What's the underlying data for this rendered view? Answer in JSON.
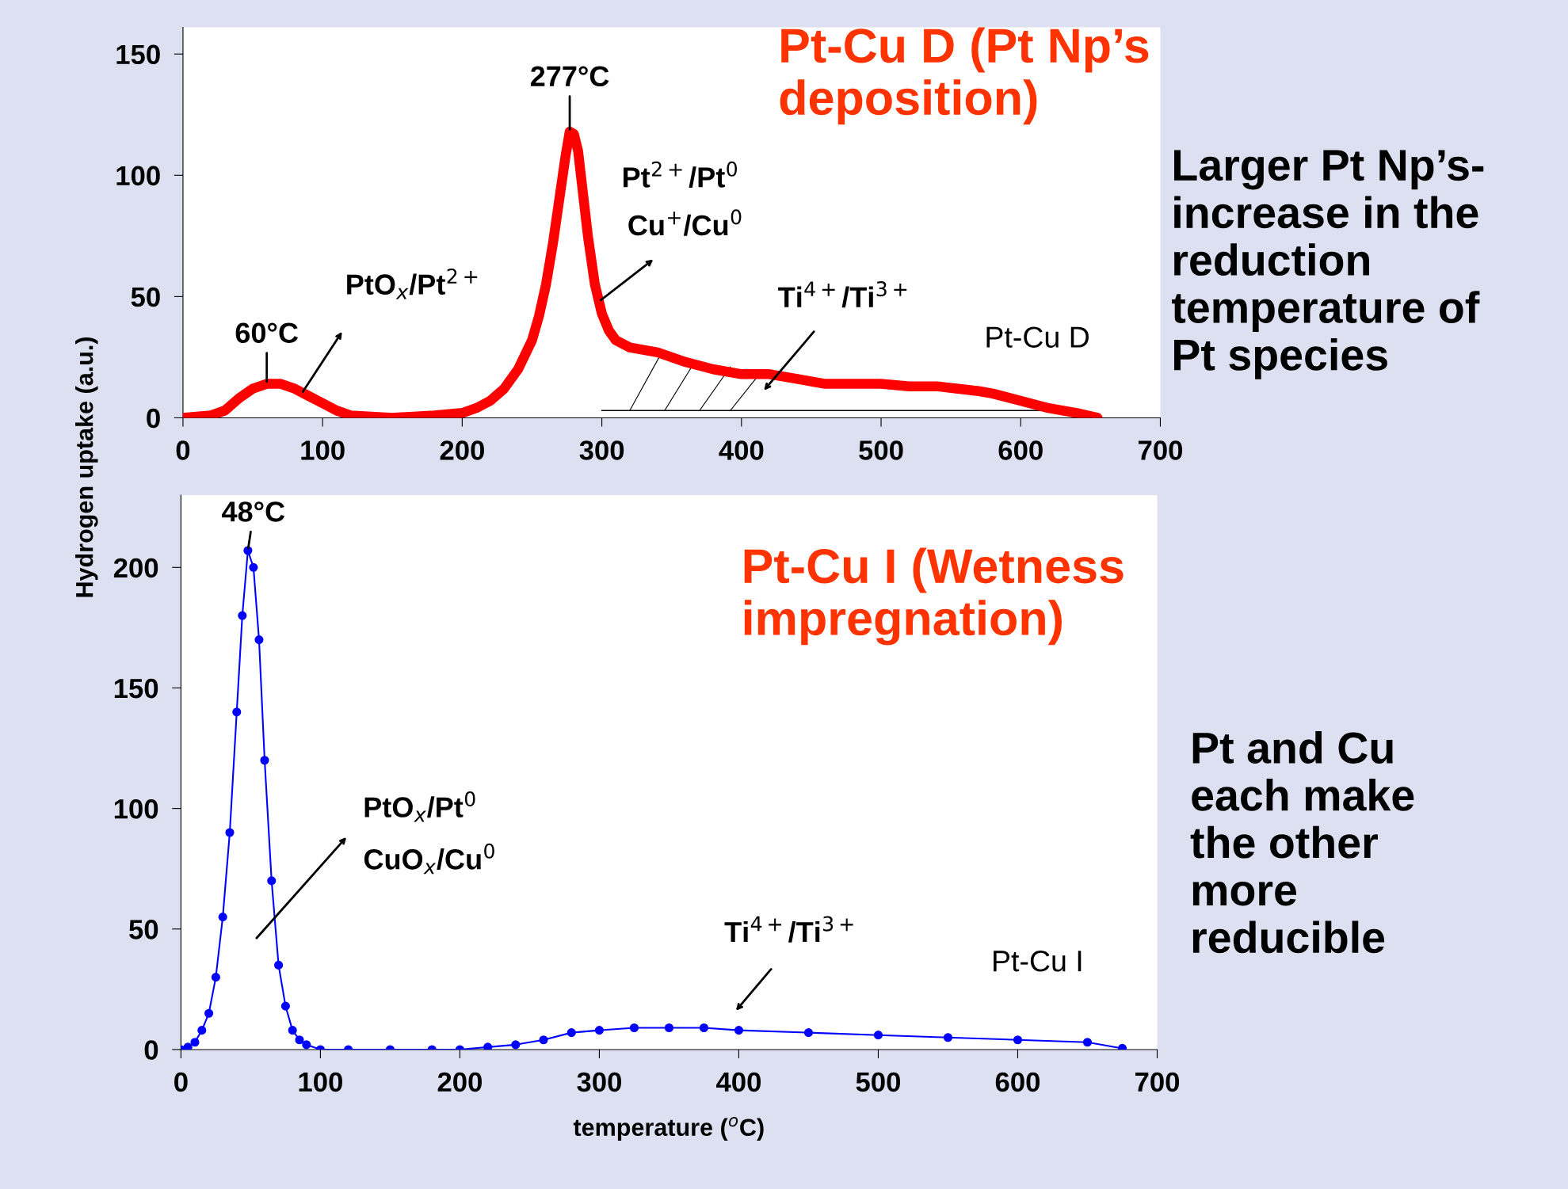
{
  "chart_data": [
    {
      "type": "line",
      "title": "Pt-Cu D (Pt Np’s\ndeposition)",
      "xlim": [
        0,
        700
      ],
      "xticks": [
        0,
        100,
        200,
        300,
        400,
        500,
        600,
        700
      ],
      "ylim": [
        0,
        161
      ],
      "yticks": [
        0,
        50,
        100,
        150
      ],
      "grid": false,
      "marker": "none",
      "line_style": "solid",
      "series": [
        {
          "name": "Pt-Cu D",
          "color": "#ff0000",
          "x": [
            0,
            20,
            30,
            40,
            50,
            60,
            70,
            80,
            90,
            100,
            110,
            120,
            150,
            180,
            200,
            210,
            220,
            230,
            240,
            250,
            255,
            260,
            265,
            270,
            274,
            277,
            280,
            283,
            286,
            290,
            295,
            300,
            305,
            310,
            320,
            340,
            360,
            380,
            400,
            420,
            440,
            460,
            480,
            500,
            520,
            540,
            555,
            570,
            580,
            600,
            620,
            640,
            655
          ],
          "values": [
            0,
            1,
            3,
            8,
            12,
            14,
            14,
            12,
            9,
            6,
            3,
            1,
            0,
            1,
            2,
            4,
            7,
            12,
            20,
            32,
            42,
            55,
            72,
            92,
            108,
            118,
            117,
            110,
            95,
            75,
            55,
            43,
            36,
            32,
            29,
            27,
            23,
            20,
            18,
            18,
            16,
            14,
            14,
            14,
            13,
            13,
            12,
            11,
            10,
            7,
            4,
            2,
            0
          ]
        },
        {
          "type": "line",
          "color": "#000000",
          "x": [
            300,
            615
          ],
          "values": [
            3,
            3
          ]
        }
      ],
      "annotations": [
        {
          "text": "60°C",
          "x": 60,
          "y": 14
        },
        {
          "text": "277°C",
          "x": 277,
          "y": 118
        },
        {
          "text": "PtO$_{x}$/Pt$^{2+}$",
          "x": 85,
          "y": 10
        },
        "Pt$^{2+}$/Pt$^{0}$",
        {
          "text": "Cu$^{+}$/Cu$^{0}$",
          "x": 298,
          "y": 48
        },
        "Ti$^{4+}$/Ti$^{3+}$",
        "Larger Pt Np’s-\nincrease in the\nreduction\ntemperature of\nPt species"
      ]
    },
    {
      "type": "line",
      "title": "Pt-Cu I (Wetness\nimpregnation)",
      "xlabel": "temperature ($^{o}$C)",
      "ylabel": "Hydrogen uptake (a.u.)",
      "xlim": [
        0,
        700
      ],
      "xticks": [
        0,
        100,
        200,
        300,
        400,
        500,
        600,
        700
      ],
      "ylim": [
        0,
        230
      ],
      "yticks": [
        0,
        50,
        100,
        150,
        200
      ],
      "grid": false,
      "marker": "circle",
      "line_style": "solid",
      "series": [
        {
          "name": "Pt-Cu I",
          "color": "#0000ff",
          "x": [
            0,
            5,
            10,
            15,
            20,
            25,
            30,
            35,
            40,
            44,
            48,
            52,
            56,
            60,
            65,
            70,
            75,
            80,
            85,
            90,
            100,
            120,
            150,
            180,
            200,
            220,
            240,
            260,
            280,
            300,
            325,
            350,
            375,
            400,
            450,
            500,
            550,
            600,
            650,
            675
          ],
          "values": [
            0,
            1,
            3,
            8,
            15,
            30,
            55,
            90,
            140,
            180,
            207,
            200,
            170,
            120,
            70,
            35,
            18,
            8,
            4,
            2,
            0,
            0,
            0,
            0,
            0,
            1,
            2,
            4,
            7,
            8,
            9,
            9,
            9,
            8,
            7,
            6,
            5,
            4,
            3,
            0.5
          ]
        }
      ],
      "annotations": [
        {
          "text": "48°C",
          "x": 48,
          "y": 207
        },
        "PtO$_{x}$/Pt$^{0}$",
        "CuO$_{x}$/Cu$^{0}$",
        "Ti$^{4+}$/Ti$^{3+}$",
        "Pt and Cu\neach make\nthe other\nmore\nreducible"
      ]
    }
  ]
}
